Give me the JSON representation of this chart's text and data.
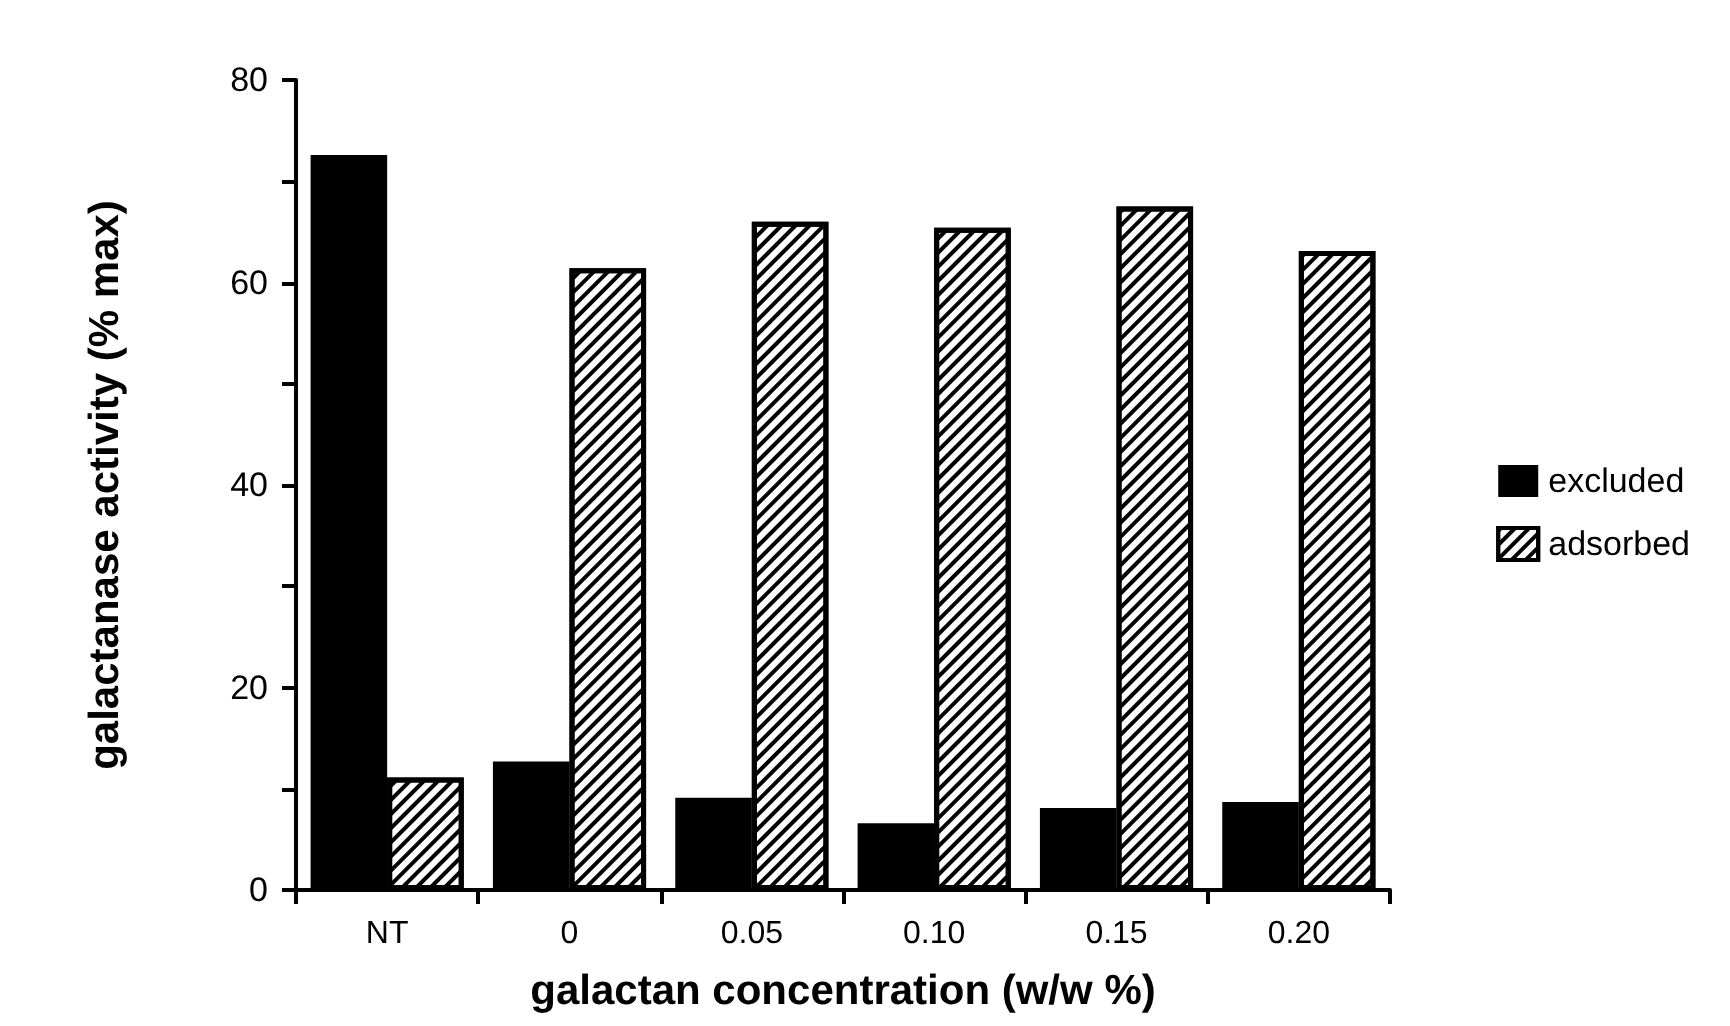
{
  "chart_data": {
    "type": "bar",
    "xlabel": "galactan concentration (w/w %)",
    "ylabel": "galactanase activity (% max)",
    "categories": [
      "NT",
      "0",
      "0.05",
      "0.10",
      "0.15",
      "0.20"
    ],
    "series": [
      {
        "name": "excluded",
        "color": "#000000",
        "values": [
          72.6,
          12.7,
          9.1,
          6.6,
          8.1,
          8.7
        ]
      },
      {
        "name": "adsorbed",
        "color": "#ffffff",
        "values": [
          11.1,
          61.4,
          66.0,
          65.4,
          67.5,
          63.1
        ]
      }
    ],
    "ylim": [
      0,
      80
    ],
    "yticks": [
      0,
      {
        "value": 10,
        "label": null
      },
      20,
      {
        "value": 30,
        "label": null
      },
      40,
      {
        "value": 50,
        "label": null
      },
      60,
      {
        "value": 70,
        "label": null
      },
      80
    ],
    "grid": false,
    "legend": "right"
  }
}
